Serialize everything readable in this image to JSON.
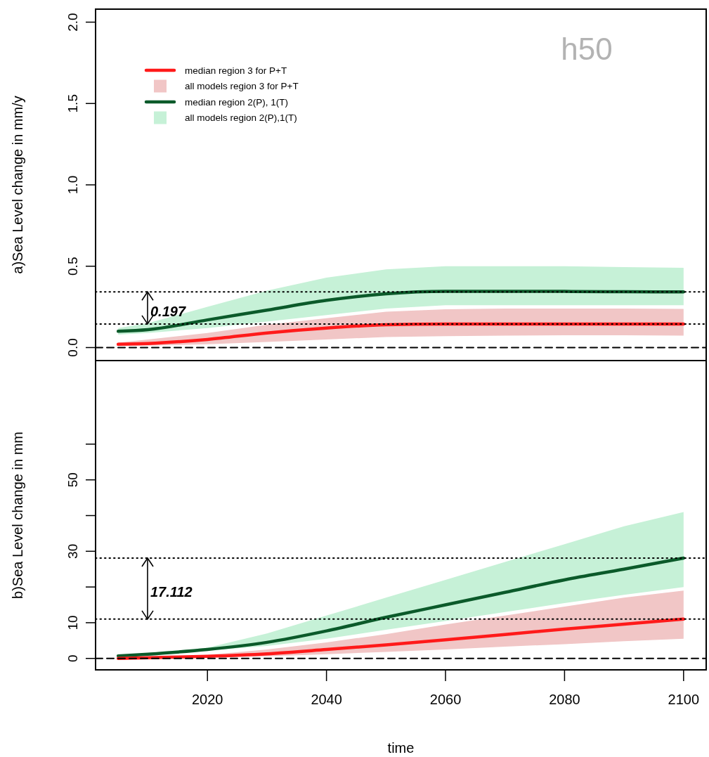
{
  "chart_data": [
    {
      "type": "line",
      "ylabel": "a)Sea Level change in mm/y",
      "legend": "top left",
      "tick_labels": "y",
      "xlim": [
        2001.2,
        2103.8
      ],
      "ylim": [
        -0.08,
        2.08
      ],
      "yticks": [
        {
          "value": 0,
          "label": "0.0"
        },
        0.5,
        {
          "value": 1,
          "label": "1.0"
        },
        1.5,
        {
          "value": 2,
          "label": "2.0"
        }
      ],
      "x": [
        2005,
        2010,
        2020,
        2030,
        2040,
        2050,
        2060,
        2070,
        2080,
        2090,
        2100
      ],
      "series": [
        {
          "name": "median region 3 for P+T",
          "color": "#ff1a1a",
          "values": [
            0.02,
            0.025,
            0.05,
            0.09,
            0.12,
            0.14,
            0.145,
            0.145,
            0.145,
            0.145,
            0.145
          ],
          "lower": [
            0.01,
            0.012,
            0.02,
            0.035,
            0.05,
            0.065,
            0.07,
            0.073,
            0.075,
            0.075,
            0.073
          ],
          "upper": [
            0.03,
            0.05,
            0.09,
            0.14,
            0.18,
            0.22,
            0.235,
            0.24,
            0.24,
            0.24,
            0.237
          ]
        },
        {
          "name": "median region 2(P), 1(T)",
          "color": "#0b5a2a",
          "values": [
            0.1,
            0.11,
            0.17,
            0.23,
            0.29,
            0.33,
            0.345,
            0.345,
            0.345,
            0.343,
            0.342
          ],
          "lower": [
            0.08,
            0.09,
            0.12,
            0.16,
            0.2,
            0.24,
            0.26,
            0.26,
            0.26,
            0.26,
            0.26
          ],
          "upper": [
            0.12,
            0.15,
            0.25,
            0.35,
            0.43,
            0.48,
            0.5,
            0.5,
            0.5,
            0.495,
            0.49
          ]
        }
      ],
      "ref_lines": [
        {
          "axis": "y",
          "value": 0,
          "line_style": "dashed"
        },
        {
          "axis": "y",
          "value": 0.145,
          "line_style": "dotted"
        },
        {
          "axis": "y",
          "value": 0.342,
          "line_style": "dotted"
        }
      ],
      "annotations": [
        "0.197",
        "h50",
        "all models region 3 for P+T",
        "all models region 2(P),1(T)"
      ]
    },
    {
      "type": "line",
      "ylabel": "b)Sea Level change in mm",
      "xlabel": "time",
      "legend": false,
      "xlim": [
        2001.2,
        2103.8
      ],
      "xticks": [
        2020,
        2040,
        2060,
        2080,
        2100
      ],
      "ylim": [
        -3.2,
        83.4
      ],
      "yticks": [
        0,
        10,
        {
          "value": 20,
          "label": null
        },
        30,
        {
          "value": 40,
          "label": null
        },
        50,
        {
          "value": 60,
          "label": null
        }
      ],
      "x": [
        2005,
        2010,
        2020,
        2030,
        2040,
        2050,
        2060,
        2070,
        2080,
        2090,
        2100
      ],
      "series": [
        {
          "color": "#0b5a2a",
          "values": [
            0.7,
            1.2,
            2.5,
            4.5,
            7.7,
            11.5,
            15,
            18.5,
            22,
            25,
            28.1
          ],
          "lower": [
            0.5,
            1,
            2.2,
            3.5,
            5.5,
            8,
            10.5,
            13,
            15.5,
            17.8,
            20
          ],
          "upper": [
            0.8,
            1.5,
            3,
            7,
            12,
            17,
            22,
            27,
            32,
            37,
            41
          ]
        },
        {
          "color": "#ff1a1a",
          "values": [
            0,
            0.2,
            0.6,
            1.3,
            2.5,
            3.8,
            5.2,
            6.7,
            8.2,
            9.6,
            11
          ],
          "lower": [
            0,
            0.1,
            0.3,
            0.6,
            1.2,
            1.8,
            2.5,
            3.3,
            4,
            4.8,
            5.5
          ],
          "upper": [
            0.1,
            0.4,
            1,
            2.5,
            4.5,
            6.8,
            9.5,
            12,
            14.5,
            17,
            19
          ]
        }
      ],
      "ref_lines": [
        {
          "axis": "y",
          "value": 0,
          "line_style": "dashed"
        },
        {
          "axis": "y",
          "value": 11,
          "line_style": "dotted"
        },
        {
          "axis": "y",
          "value": 28.1,
          "line_style": "dotted"
        }
      ],
      "annotations": [
        "17.112"
      ]
    }
  ]
}
